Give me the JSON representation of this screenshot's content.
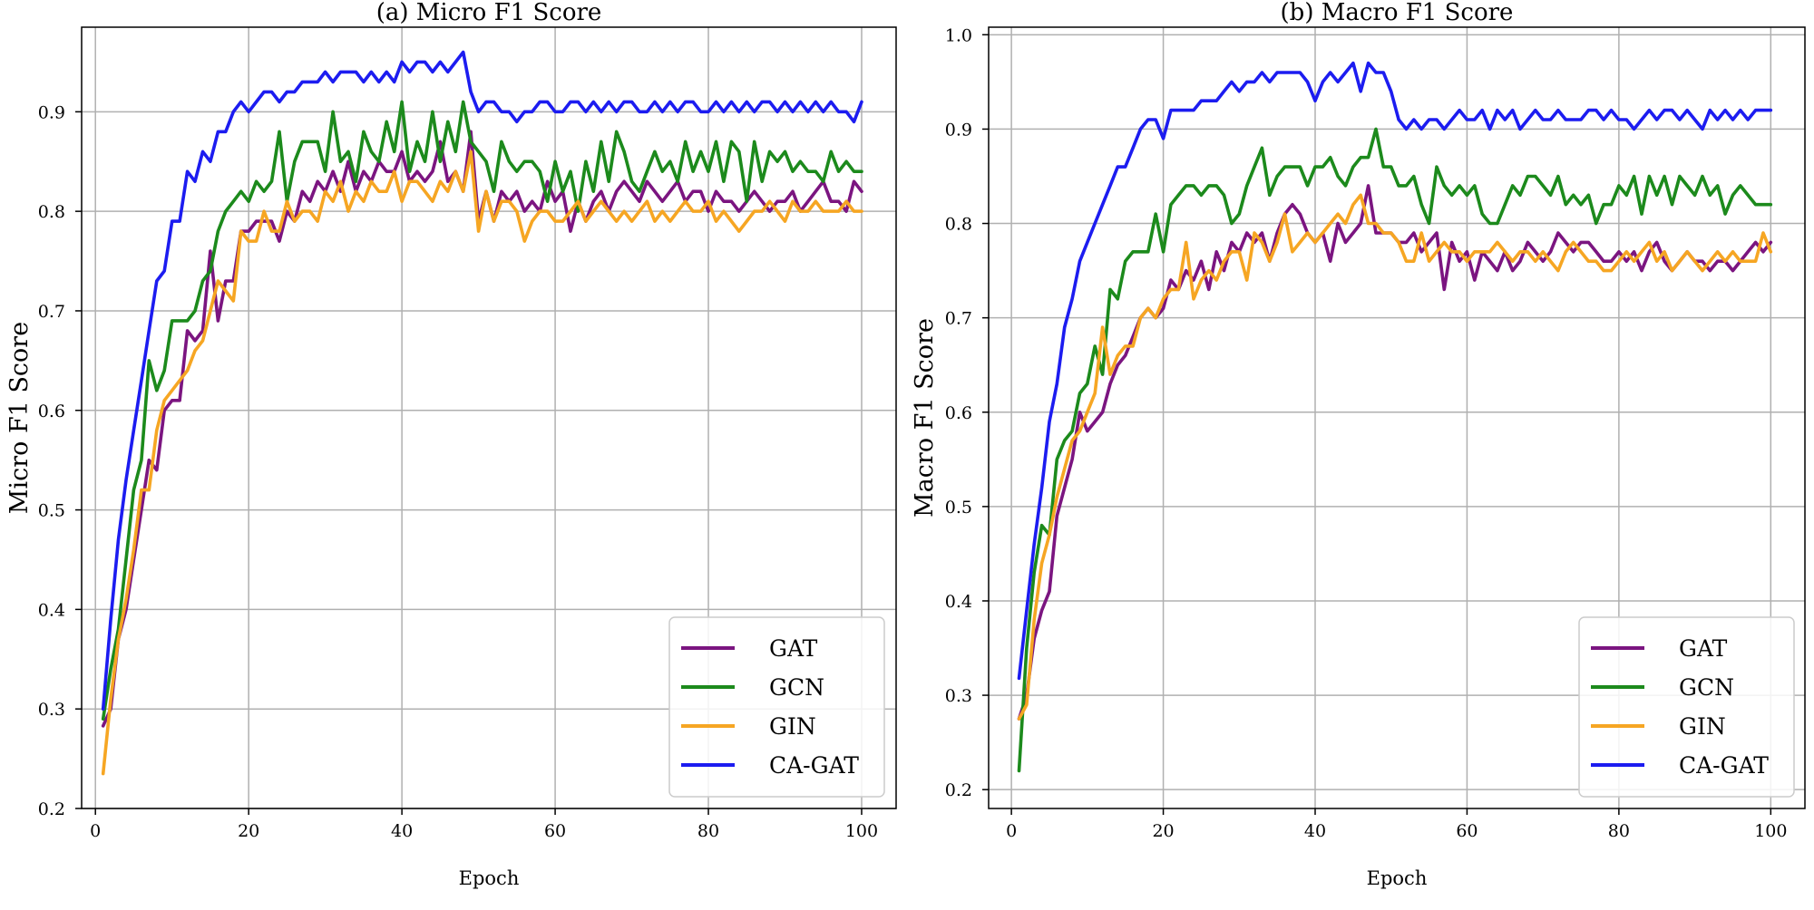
{
  "figure": {
    "background": "#ffffff"
  },
  "chart_data": [
    {
      "type": "line",
      "title": "(a) Micro F1 Score",
      "xlabel": "Epoch",
      "ylabel": "Micro F1 Score",
      "xlim": [
        -1.8,
        104.5
      ],
      "ylim": [
        0.2,
        0.985
      ],
      "xticks": [
        0,
        20,
        40,
        60,
        80,
        100
      ],
      "xtick_labels": [
        "0",
        "20",
        "40",
        "60",
        "80",
        "100"
      ],
      "yticks": [
        0.2,
        0.3,
        0.4,
        0.5,
        0.6,
        0.7,
        0.8,
        0.9
      ],
      "ytick_labels": [
        "0.2",
        "0.3",
        "0.4",
        "0.5",
        "0.6",
        "0.7",
        "0.8",
        "0.9"
      ],
      "grid": true,
      "legend_position": "lower-right",
      "x": [
        1,
        2,
        3,
        4,
        5,
        6,
        7,
        8,
        9,
        10,
        11,
        12,
        13,
        14,
        15,
        16,
        17,
        18,
        19,
        20,
        21,
        22,
        23,
        24,
        25,
        26,
        27,
        28,
        29,
        30,
        31,
        32,
        33,
        34,
        35,
        36,
        37,
        38,
        39,
        40,
        41,
        42,
        43,
        44,
        45,
        46,
        47,
        48,
        49,
        50,
        51,
        52,
        53,
        54,
        55,
        56,
        57,
        58,
        59,
        60,
        61,
        62,
        63,
        64,
        65,
        66,
        67,
        68,
        69,
        70,
        71,
        72,
        73,
        74,
        75,
        76,
        77,
        78,
        79,
        80,
        81,
        82,
        83,
        84,
        85,
        86,
        87,
        88,
        89,
        90,
        91,
        92,
        93,
        94,
        95,
        96,
        97,
        98,
        99,
        100
      ],
      "series": [
        {
          "name": "GAT",
          "color": "#7b1580",
          "values": [
            0.283,
            0.3,
            0.37,
            0.4,
            0.45,
            0.5,
            0.55,
            0.54,
            0.6,
            0.61,
            0.61,
            0.68,
            0.67,
            0.68,
            0.76,
            0.69,
            0.73,
            0.73,
            0.78,
            0.78,
            0.79,
            0.79,
            0.79,
            0.77,
            0.8,
            0.79,
            0.82,
            0.81,
            0.83,
            0.82,
            0.84,
            0.82,
            0.85,
            0.82,
            0.84,
            0.83,
            0.85,
            0.84,
            0.84,
            0.86,
            0.83,
            0.84,
            0.83,
            0.84,
            0.87,
            0.83,
            0.84,
            0.82,
            0.88,
            0.79,
            0.82,
            0.79,
            0.82,
            0.81,
            0.82,
            0.8,
            0.81,
            0.8,
            0.83,
            0.81,
            0.82,
            0.78,
            0.81,
            0.79,
            0.81,
            0.82,
            0.8,
            0.82,
            0.83,
            0.82,
            0.81,
            0.83,
            0.82,
            0.81,
            0.82,
            0.83,
            0.81,
            0.82,
            0.82,
            0.8,
            0.82,
            0.81,
            0.81,
            0.8,
            0.81,
            0.82,
            0.81,
            0.8,
            0.81,
            0.81,
            0.82,
            0.8,
            0.81,
            0.82,
            0.83,
            0.81,
            0.81,
            0.8,
            0.83,
            0.82
          ]
        },
        {
          "name": "GCN",
          "color": "#1c8a1c",
          "values": [
            0.29,
            0.34,
            0.38,
            0.45,
            0.52,
            0.55,
            0.65,
            0.62,
            0.64,
            0.69,
            0.69,
            0.69,
            0.7,
            0.73,
            0.74,
            0.78,
            0.8,
            0.81,
            0.82,
            0.81,
            0.83,
            0.82,
            0.83,
            0.88,
            0.81,
            0.85,
            0.87,
            0.87,
            0.87,
            0.84,
            0.9,
            0.85,
            0.86,
            0.83,
            0.88,
            0.86,
            0.85,
            0.89,
            0.86,
            0.91,
            0.84,
            0.87,
            0.85,
            0.9,
            0.85,
            0.89,
            0.86,
            0.91,
            0.87,
            0.86,
            0.85,
            0.82,
            0.87,
            0.85,
            0.84,
            0.85,
            0.85,
            0.84,
            0.81,
            0.85,
            0.82,
            0.84,
            0.8,
            0.85,
            0.82,
            0.87,
            0.83,
            0.88,
            0.86,
            0.83,
            0.82,
            0.84,
            0.86,
            0.84,
            0.85,
            0.83,
            0.87,
            0.84,
            0.86,
            0.84,
            0.87,
            0.83,
            0.87,
            0.86,
            0.81,
            0.87,
            0.83,
            0.86,
            0.85,
            0.86,
            0.84,
            0.85,
            0.84,
            0.84,
            0.83,
            0.86,
            0.84,
            0.85,
            0.84,
            0.84
          ]
        },
        {
          "name": "GIN",
          "color": "#f6a623",
          "values": [
            0.235,
            0.31,
            0.37,
            0.41,
            0.46,
            0.52,
            0.52,
            0.58,
            0.61,
            0.62,
            0.63,
            0.64,
            0.66,
            0.67,
            0.7,
            0.73,
            0.72,
            0.71,
            0.78,
            0.77,
            0.77,
            0.8,
            0.78,
            0.78,
            0.81,
            0.79,
            0.8,
            0.8,
            0.79,
            0.82,
            0.81,
            0.83,
            0.8,
            0.82,
            0.81,
            0.83,
            0.82,
            0.82,
            0.84,
            0.81,
            0.83,
            0.83,
            0.82,
            0.81,
            0.83,
            0.82,
            0.84,
            0.82,
            0.86,
            0.78,
            0.82,
            0.79,
            0.81,
            0.81,
            0.8,
            0.77,
            0.79,
            0.8,
            0.8,
            0.79,
            0.79,
            0.8,
            0.81,
            0.79,
            0.8,
            0.81,
            0.8,
            0.79,
            0.8,
            0.79,
            0.8,
            0.81,
            0.79,
            0.8,
            0.79,
            0.8,
            0.81,
            0.8,
            0.8,
            0.81,
            0.79,
            0.8,
            0.79,
            0.78,
            0.79,
            0.8,
            0.8,
            0.81,
            0.8,
            0.79,
            0.81,
            0.8,
            0.8,
            0.81,
            0.8,
            0.8,
            0.8,
            0.81,
            0.8,
            0.8
          ]
        },
        {
          "name": "CA-GAT",
          "color": "#1c1cf0",
          "values": [
            0.3,
            0.39,
            0.47,
            0.53,
            0.58,
            0.63,
            0.68,
            0.73,
            0.74,
            0.79,
            0.79,
            0.84,
            0.83,
            0.86,
            0.85,
            0.88,
            0.88,
            0.9,
            0.91,
            0.9,
            0.91,
            0.92,
            0.92,
            0.91,
            0.92,
            0.92,
            0.93,
            0.93,
            0.93,
            0.94,
            0.93,
            0.94,
            0.94,
            0.94,
            0.93,
            0.94,
            0.93,
            0.94,
            0.93,
            0.95,
            0.94,
            0.95,
            0.95,
            0.94,
            0.95,
            0.94,
            0.95,
            0.96,
            0.92,
            0.9,
            0.91,
            0.91,
            0.9,
            0.9,
            0.89,
            0.9,
            0.9,
            0.91,
            0.91,
            0.9,
            0.9,
            0.91,
            0.91,
            0.9,
            0.91,
            0.9,
            0.91,
            0.9,
            0.91,
            0.91,
            0.9,
            0.9,
            0.91,
            0.9,
            0.91,
            0.9,
            0.91,
            0.91,
            0.9,
            0.9,
            0.91,
            0.9,
            0.91,
            0.9,
            0.91,
            0.9,
            0.91,
            0.91,
            0.9,
            0.91,
            0.9,
            0.91,
            0.9,
            0.91,
            0.9,
            0.91,
            0.9,
            0.9,
            0.89,
            0.91
          ]
        }
      ]
    },
    {
      "type": "line",
      "title": "(b) Macro F1 Score",
      "xlabel": "Epoch",
      "ylabel": "Macro F1 Score",
      "xlim": [
        -3.0,
        104.5
      ],
      "ylim": [
        0.18,
        1.008
      ],
      "xticks": [
        0,
        20,
        40,
        60,
        80,
        100
      ],
      "xtick_labels": [
        "0",
        "20",
        "40",
        "60",
        "80",
        "100"
      ],
      "yticks": [
        0.2,
        0.3,
        0.4,
        0.5,
        0.6,
        0.7,
        0.8,
        0.9,
        1.0
      ],
      "ytick_labels": [
        "0.2",
        "0.3",
        "0.4",
        "0.5",
        "0.6",
        "0.7",
        "0.8",
        "0.9",
        "1.0"
      ],
      "grid": true,
      "legend_position": "lower-right",
      "x": [
        1,
        2,
        3,
        4,
        5,
        6,
        7,
        8,
        9,
        10,
        11,
        12,
        13,
        14,
        15,
        16,
        17,
        18,
        19,
        20,
        21,
        22,
        23,
        24,
        25,
        26,
        27,
        28,
        29,
        30,
        31,
        32,
        33,
        34,
        35,
        36,
        37,
        38,
        39,
        40,
        41,
        42,
        43,
        44,
        45,
        46,
        47,
        48,
        49,
        50,
        51,
        52,
        53,
        54,
        55,
        56,
        57,
        58,
        59,
        60,
        61,
        62,
        63,
        64,
        65,
        66,
        67,
        68,
        69,
        70,
        71,
        72,
        73,
        74,
        75,
        76,
        77,
        78,
        79,
        80,
        81,
        82,
        83,
        84,
        85,
        86,
        87,
        88,
        89,
        90,
        91,
        92,
        93,
        94,
        95,
        96,
        97,
        98,
        99,
        100
      ],
      "series": [
        {
          "name": "GAT",
          "color": "#7b1580",
          "values": [
            0.275,
            0.3,
            0.36,
            0.39,
            0.41,
            0.49,
            0.52,
            0.55,
            0.6,
            0.58,
            0.59,
            0.6,
            0.63,
            0.65,
            0.66,
            0.68,
            0.7,
            0.71,
            0.7,
            0.71,
            0.74,
            0.73,
            0.75,
            0.74,
            0.76,
            0.73,
            0.77,
            0.75,
            0.78,
            0.77,
            0.79,
            0.78,
            0.79,
            0.76,
            0.79,
            0.81,
            0.82,
            0.81,
            0.79,
            0.78,
            0.79,
            0.76,
            0.8,
            0.78,
            0.79,
            0.8,
            0.84,
            0.79,
            0.79,
            0.79,
            0.78,
            0.78,
            0.79,
            0.77,
            0.78,
            0.79,
            0.73,
            0.78,
            0.76,
            0.77,
            0.74,
            0.77,
            0.76,
            0.75,
            0.77,
            0.75,
            0.76,
            0.78,
            0.77,
            0.76,
            0.77,
            0.79,
            0.78,
            0.77,
            0.78,
            0.78,
            0.77,
            0.76,
            0.76,
            0.77,
            0.76,
            0.77,
            0.75,
            0.77,
            0.78,
            0.76,
            0.75,
            0.76,
            0.77,
            0.76,
            0.76,
            0.75,
            0.76,
            0.76,
            0.75,
            0.76,
            0.77,
            0.78,
            0.77,
            0.78
          ]
        },
        {
          "name": "GCN",
          "color": "#1c8a1c",
          "values": [
            0.22,
            0.35,
            0.43,
            0.48,
            0.47,
            0.55,
            0.57,
            0.58,
            0.62,
            0.63,
            0.67,
            0.64,
            0.73,
            0.72,
            0.76,
            0.77,
            0.77,
            0.77,
            0.81,
            0.77,
            0.82,
            0.83,
            0.84,
            0.84,
            0.83,
            0.84,
            0.84,
            0.83,
            0.8,
            0.81,
            0.84,
            0.86,
            0.88,
            0.83,
            0.85,
            0.86,
            0.86,
            0.86,
            0.84,
            0.86,
            0.86,
            0.87,
            0.85,
            0.84,
            0.86,
            0.87,
            0.87,
            0.9,
            0.86,
            0.86,
            0.84,
            0.84,
            0.85,
            0.82,
            0.8,
            0.86,
            0.84,
            0.83,
            0.84,
            0.83,
            0.84,
            0.81,
            0.8,
            0.8,
            0.82,
            0.84,
            0.83,
            0.85,
            0.85,
            0.84,
            0.83,
            0.85,
            0.82,
            0.83,
            0.82,
            0.83,
            0.8,
            0.82,
            0.82,
            0.84,
            0.83,
            0.85,
            0.81,
            0.85,
            0.83,
            0.85,
            0.82,
            0.85,
            0.84,
            0.83,
            0.85,
            0.83,
            0.84,
            0.81,
            0.83,
            0.84,
            0.83,
            0.82,
            0.82,
            0.82
          ]
        },
        {
          "name": "GIN",
          "color": "#f6a623",
          "values": [
            0.275,
            0.29,
            0.38,
            0.44,
            0.47,
            0.51,
            0.54,
            0.57,
            0.58,
            0.6,
            0.62,
            0.69,
            0.64,
            0.66,
            0.67,
            0.67,
            0.7,
            0.71,
            0.7,
            0.72,
            0.73,
            0.73,
            0.78,
            0.72,
            0.74,
            0.75,
            0.74,
            0.76,
            0.77,
            0.77,
            0.74,
            0.79,
            0.78,
            0.76,
            0.78,
            0.81,
            0.77,
            0.78,
            0.79,
            0.78,
            0.79,
            0.8,
            0.81,
            0.8,
            0.82,
            0.83,
            0.8,
            0.8,
            0.79,
            0.79,
            0.78,
            0.76,
            0.76,
            0.79,
            0.76,
            0.77,
            0.78,
            0.77,
            0.77,
            0.76,
            0.77,
            0.77,
            0.77,
            0.78,
            0.77,
            0.76,
            0.77,
            0.77,
            0.76,
            0.77,
            0.76,
            0.75,
            0.77,
            0.78,
            0.77,
            0.76,
            0.76,
            0.75,
            0.75,
            0.76,
            0.77,
            0.76,
            0.77,
            0.78,
            0.76,
            0.77,
            0.75,
            0.76,
            0.77,
            0.76,
            0.75,
            0.76,
            0.77,
            0.76,
            0.77,
            0.76,
            0.76,
            0.76,
            0.79,
            0.77
          ]
        },
        {
          "name": "CA-GAT",
          "color": "#1c1cf0",
          "values": [
            0.318,
            0.39,
            0.46,
            0.52,
            0.59,
            0.63,
            0.69,
            0.72,
            0.76,
            0.78,
            0.8,
            0.82,
            0.84,
            0.86,
            0.86,
            0.88,
            0.9,
            0.91,
            0.91,
            0.89,
            0.92,
            0.92,
            0.92,
            0.92,
            0.93,
            0.93,
            0.93,
            0.94,
            0.95,
            0.94,
            0.95,
            0.95,
            0.96,
            0.95,
            0.96,
            0.96,
            0.96,
            0.96,
            0.95,
            0.93,
            0.95,
            0.96,
            0.95,
            0.96,
            0.97,
            0.94,
            0.97,
            0.96,
            0.96,
            0.94,
            0.91,
            0.9,
            0.91,
            0.9,
            0.91,
            0.91,
            0.9,
            0.91,
            0.92,
            0.91,
            0.91,
            0.92,
            0.9,
            0.92,
            0.91,
            0.92,
            0.9,
            0.91,
            0.92,
            0.91,
            0.91,
            0.92,
            0.91,
            0.91,
            0.91,
            0.92,
            0.92,
            0.91,
            0.92,
            0.91,
            0.91,
            0.9,
            0.91,
            0.92,
            0.91,
            0.92,
            0.92,
            0.91,
            0.92,
            0.91,
            0.9,
            0.92,
            0.91,
            0.92,
            0.91,
            0.92,
            0.91,
            0.92,
            0.92,
            0.92
          ]
        }
      ]
    }
  ]
}
